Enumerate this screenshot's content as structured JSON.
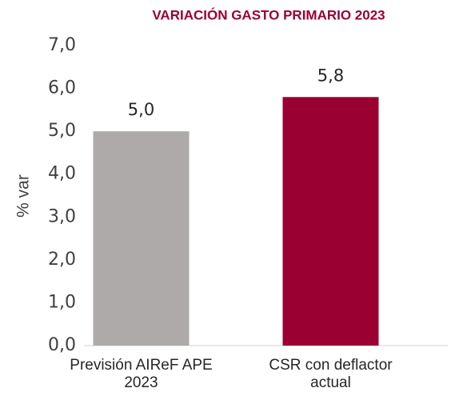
{
  "chart_data": {
    "type": "bar",
    "title": "VARIACIÓN GASTO PRIMARIO 2023",
    "y_label": "% var",
    "categories": [
      "Previsión AIReF APE 2023",
      "CSR con deflactor actual"
    ],
    "values": [
      5.0,
      5.8
    ],
    "value_labels": [
      "5,0",
      "5,8"
    ],
    "colors": [
      "#aeaaaa",
      "#9b0033"
    ],
    "ylim": [
      0,
      7
    ],
    "yticks": [
      {
        "value": 0,
        "label": "0,0"
      },
      {
        "value": 1,
        "label": "1,0"
      },
      {
        "value": 2,
        "label": "2,0"
      },
      {
        "value": 3,
        "label": "3,0"
      },
      {
        "value": 4,
        "label": "4,0"
      },
      {
        "value": 5,
        "label": "5,0"
      },
      {
        "value": 6,
        "label": "6,0"
      },
      {
        "value": 7,
        "label": "7,0"
      }
    ],
    "grid": false
  }
}
